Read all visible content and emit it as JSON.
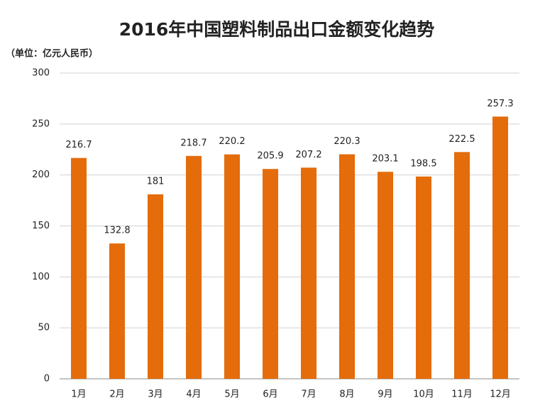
{
  "chart_data": {
    "type": "bar",
    "title": "2016年中国塑料制品出口金额变化趋势",
    "subtitle": "（单位：亿元人民币）",
    "categories": [
      "1月",
      "2月",
      "3月",
      "4月",
      "5月",
      "6月",
      "7月",
      "8月",
      "9月",
      "10月",
      "11月",
      "12月"
    ],
    "values": [
      216.7,
      132.8,
      181,
      218.7,
      220.2,
      205.9,
      207.2,
      220.3,
      203.1,
      198.5,
      222.5,
      257.3
    ],
    "color": "#e46c0a",
    "ylim": [
      0,
      300
    ],
    "yticks": [
      0,
      50,
      100,
      150,
      200,
      250,
      300
    ],
    "grid": true
  }
}
